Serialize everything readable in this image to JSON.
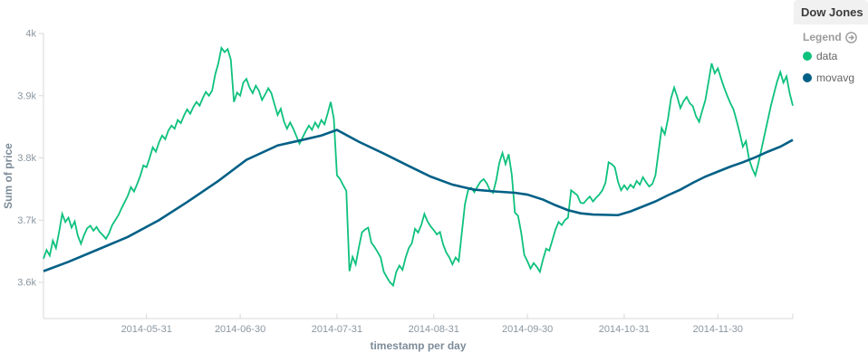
{
  "panel_title": "Dow Jones",
  "legend": {
    "label": "Legend",
    "items": [
      {
        "label": "data",
        "color": "#0ec17d"
      },
      {
        "label": "movavg",
        "color": "#016086"
      }
    ]
  },
  "colors": {
    "green": "#0ec17d",
    "teal": "#016086",
    "axis": "#d8d8d8",
    "tick_text": "#8a96a0"
  },
  "chart_data": {
    "type": "line",
    "title": "Dow Jones",
    "xlabel": "timestamp per day",
    "ylabel": "Sum of price",
    "x_unit": "day index, day 0 = 2014-04-28, 1 point per day",
    "x_range": [
      0,
      240
    ],
    "y_range": [
      3542,
      4010
    ],
    "grid": false,
    "legend_position": "right",
    "x_ticks": [
      {
        "day": 33,
        "label": "2014-05-31"
      },
      {
        "day": 63,
        "label": "2014-06-30"
      },
      {
        "day": 94,
        "label": "2014-07-31"
      },
      {
        "day": 125,
        "label": "2014-08-31"
      },
      {
        "day": 155,
        "label": "2014-09-30"
      },
      {
        "day": 186,
        "label": "2014-10-31"
      },
      {
        "day": 216,
        "label": "2014-11-30"
      }
    ],
    "y_ticks": [
      {
        "value": 3600,
        "label": "3.6k"
      },
      {
        "value": 3700,
        "label": "3.7k"
      },
      {
        "value": 3800,
        "label": "3.8k"
      },
      {
        "value": 3900,
        "label": "3.9k"
      },
      {
        "value": 4000,
        "label": "4k"
      }
    ],
    "series": [
      {
        "name": "data",
        "color": "#0ec17d",
        "stroke_width": 1.8,
        "x_step": 1,
        "values": [
          3638,
          3652,
          3643,
          3667,
          3655,
          3681,
          3710,
          3697,
          3704,
          3688,
          3698,
          3675,
          3662,
          3676,
          3687,
          3691,
          3683,
          3689,
          3681,
          3676,
          3670,
          3679,
          3692,
          3700,
          3708,
          3719,
          3729,
          3739,
          3753,
          3746,
          3758,
          3771,
          3788,
          3785,
          3800,
          3817,
          3810,
          3825,
          3836,
          3830,
          3844,
          3852,
          3847,
          3861,
          3856,
          3868,
          3878,
          3871,
          3882,
          3890,
          3884,
          3896,
          3906,
          3900,
          3908,
          3934,
          3952,
          3977,
          3970,
          3975,
          3958,
          3890,
          3905,
          3900,
          3921,
          3927,
          3913,
          3904,
          3916,
          3908,
          3893,
          3902,
          3912,
          3904,
          3886,
          3869,
          3879,
          3859,
          3847,
          3857,
          3847,
          3835,
          3823,
          3833,
          3843,
          3852,
          3845,
          3857,
          3849,
          3861,
          3854,
          3871,
          3890,
          3863,
          3772,
          3766,
          3756,
          3747,
          3618,
          3641,
          3629,
          3656,
          3680,
          3685,
          3688,
          3664,
          3657,
          3649,
          3640,
          3617,
          3608,
          3600,
          3595,
          3617,
          3627,
          3620,
          3640,
          3655,
          3663,
          3686,
          3680,
          3692,
          3710,
          3698,
          3690,
          3684,
          3677,
          3681,
          3661,
          3648,
          3640,
          3629,
          3640,
          3634,
          3680,
          3726,
          3748,
          3752,
          3745,
          3754,
          3762,
          3766,
          3759,
          3748,
          3744,
          3764,
          3792,
          3808,
          3790,
          3806,
          3773,
          3712,
          3707,
          3680,
          3644,
          3634,
          3622,
          3631,
          3625,
          3617,
          3637,
          3654,
          3651,
          3668,
          3685,
          3697,
          3692,
          3700,
          3704,
          3748,
          3744,
          3740,
          3728,
          3727,
          3733,
          3738,
          3730,
          3736,
          3741,
          3748,
          3760,
          3793,
          3790,
          3785,
          3762,
          3748,
          3756,
          3749,
          3757,
          3752,
          3763,
          3757,
          3769,
          3761,
          3754,
          3758,
          3772,
          3810,
          3848,
          3838,
          3862,
          3896,
          3913,
          3898,
          3880,
          3891,
          3898,
          3888,
          3883,
          3867,
          3858,
          3876,
          3893,
          3922,
          3952,
          3936,
          3944,
          3928,
          3913,
          3900,
          3888,
          3878,
          3860,
          3840,
          3818,
          3827,
          3798,
          3783,
          3772,
          3792,
          3815,
          3838,
          3861,
          3884,
          3904,
          3923,
          3938,
          3921,
          3931,
          3904,
          3884
        ]
      },
      {
        "name": "movavg",
        "color": "#016086",
        "stroke_width": 2.6,
        "points": [
          [
            0,
            3618
          ],
          [
            8,
            3633
          ],
          [
            18,
            3654
          ],
          [
            27,
            3673
          ],
          [
            37,
            3700
          ],
          [
            46,
            3729
          ],
          [
            56,
            3763
          ],
          [
            65,
            3797
          ],
          [
            75,
            3820
          ],
          [
            83,
            3829
          ],
          [
            89,
            3836
          ],
          [
            94,
            3845
          ],
          [
            101,
            3826
          ],
          [
            109,
            3807
          ],
          [
            117,
            3787
          ],
          [
            124,
            3770
          ],
          [
            131,
            3757
          ],
          [
            138,
            3749
          ],
          [
            145,
            3746
          ],
          [
            151,
            3744
          ],
          [
            155,
            3741
          ],
          [
            160,
            3733
          ],
          [
            164,
            3724
          ],
          [
            168,
            3716
          ],
          [
            172,
            3711
          ],
          [
            176,
            3709
          ],
          [
            184,
            3708
          ],
          [
            188,
            3714
          ],
          [
            192,
            3722
          ],
          [
            196,
            3730
          ],
          [
            200,
            3740
          ],
          [
            204,
            3749
          ],
          [
            208,
            3760
          ],
          [
            212,
            3770
          ],
          [
            216,
            3778
          ],
          [
            220,
            3786
          ],
          [
            224,
            3793
          ],
          [
            228,
            3801
          ],
          [
            232,
            3810
          ],
          [
            236,
            3818
          ],
          [
            240,
            3829
          ]
        ]
      }
    ]
  }
}
